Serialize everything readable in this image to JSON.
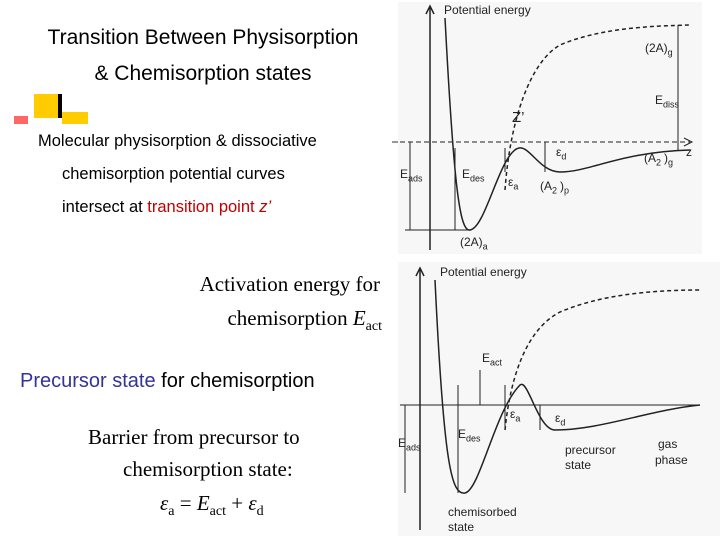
{
  "title": {
    "lines": [
      "Transition Between Physisorption",
      "& Chemisorption states"
    ]
  },
  "bullet": {
    "lines": [
      "Molecular physisorption & dissociative",
      "chemisorption potential curves",
      "intersect at "
    ],
    "highlight": "transition point",
    "variable": " z’"
  },
  "activation": {
    "lines": [
      "Activation energy for",
      "chemisorption "
    ],
    "symbol": "E",
    "sub": "act"
  },
  "precursor": {
    "highlight": "Precursor state",
    "rest": " for chemisorption"
  },
  "barrier": {
    "lines": [
      "Barrier from precursor to",
      "chemisorption state:"
    ],
    "formula": [
      {
        "text": "ε",
        "sub": "a"
      },
      {
        "text": " = "
      },
      {
        "text": "E",
        "sub": "act"
      },
      {
        "text": " + "
      },
      {
        "text": "ε",
        "sub": "d"
      }
    ]
  },
  "diagram_top": {
    "labels": [
      {
        "text": "Potential energy"
      },
      {
        "text": "(2A)",
        "sub": "g"
      },
      {
        "text": "E",
        "sub": "diss"
      },
      {
        "text": "z"
      },
      {
        "text": "Z’"
      },
      {
        "text": "ε",
        "sub": "d"
      },
      {
        "text": "(A",
        "sub": "2"
      },
      {
        "text": ")",
        "sub": "g"
      },
      {
        "text": "E",
        "sub": "ads"
      },
      {
        "text": "E",
        "sub": "des"
      },
      {
        "text": "ε",
        "sub": "a"
      },
      {
        "text": "(A",
        "sub": "2"
      },
      {
        "text": ")",
        "sub": "p"
      },
      {
        "text": "(2A)",
        "sub": "a"
      }
    ]
  },
  "diagram_bottom": {
    "labels": [
      {
        "text": "Potential energy"
      },
      {
        "text": "E",
        "sub": "act"
      },
      {
        "text": "ε",
        "sub": "a"
      },
      {
        "text": "ε",
        "sub": "d"
      },
      {
        "text": "E",
        "sub": "ads"
      },
      {
        "text": "E",
        "sub": "des"
      },
      {
        "text": "gas"
      },
      {
        "text": "phase"
      },
      {
        "text": "precursor"
      },
      {
        "text": "state"
      },
      {
        "text": "chemisorbed"
      },
      {
        "text": "state"
      }
    ]
  }
}
